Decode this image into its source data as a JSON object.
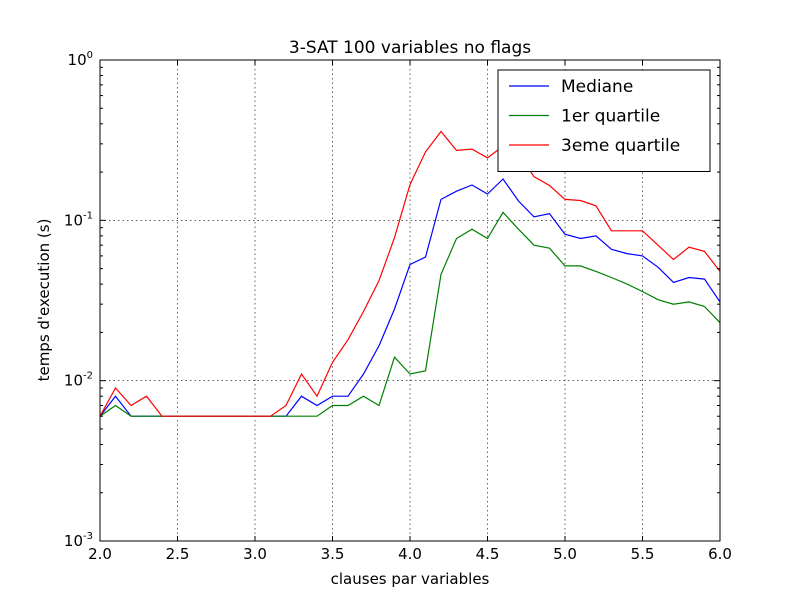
{
  "chart_data": {
    "type": "line",
    "title": "3-SAT 100 variables no flags",
    "xlabel": "clauses par variables",
    "ylabel": "temps d'execution (s)",
    "xlim": [
      2.0,
      6.0
    ],
    "ylim": [
      0.001,
      1.0
    ],
    "yscale": "log",
    "grid": true,
    "legend_position": "top-right",
    "x_ticks": [
      2.0,
      2.5,
      3.0,
      3.5,
      4.0,
      4.5,
      5.0,
      5.5,
      6.0
    ],
    "x_tick_labels": [
      "2.0",
      "2.5",
      "3.0",
      "3.5",
      "4.0",
      "4.5",
      "5.0",
      "5.5",
      "6.0"
    ],
    "y_ticks": [
      {
        "value": 0.001,
        "base": "10",
        "exp": "-3"
      },
      {
        "value": 0.01,
        "base": "10",
        "exp": "-2"
      },
      {
        "value": 0.1,
        "base": "10",
        "exp": "-1"
      },
      {
        "value": 1.0,
        "base": "10",
        "exp": "0"
      }
    ],
    "x": [
      2.0,
      2.1,
      2.2,
      2.3,
      2.4,
      2.5,
      2.6,
      2.7,
      2.8,
      2.9,
      3.0,
      3.1,
      3.2,
      3.3,
      3.4,
      3.5,
      3.6,
      3.7,
      3.8,
      3.9,
      4.0,
      4.1,
      4.2,
      4.3,
      4.4,
      4.5,
      4.6,
      4.7,
      4.8,
      4.9,
      5.0,
      5.1,
      5.2,
      5.3,
      5.4,
      5.5,
      5.6,
      5.7,
      5.8,
      5.9,
      6.0
    ],
    "series": [
      {
        "name": "Mediane",
        "color": "#0000ff",
        "values": [
          0.006,
          0.008,
          0.006,
          0.006,
          0.006,
          0.006,
          0.006,
          0.006,
          0.006,
          0.006,
          0.006,
          0.006,
          0.006,
          0.008,
          0.007,
          0.008,
          0.008,
          0.011,
          0.0165,
          0.028,
          0.053,
          0.059,
          0.135,
          0.152,
          0.166,
          0.146,
          0.181,
          0.132,
          0.105,
          0.11,
          0.082,
          0.077,
          0.08,
          0.066,
          0.062,
          0.06,
          0.051,
          0.041,
          0.044,
          0.043,
          0.031
        ]
      },
      {
        "name": "1er quartile",
        "color": "#008000",
        "values": [
          0.006,
          0.007,
          0.006,
          0.006,
          0.006,
          0.006,
          0.006,
          0.006,
          0.006,
          0.006,
          0.006,
          0.006,
          0.006,
          0.006,
          0.006,
          0.007,
          0.007,
          0.008,
          0.007,
          0.014,
          0.011,
          0.0115,
          0.046,
          0.077,
          0.088,
          0.077,
          0.112,
          0.088,
          0.07,
          0.067,
          0.052,
          0.052,
          0.048,
          0.044,
          0.04,
          0.036,
          0.032,
          0.03,
          0.031,
          0.029,
          0.023
        ]
      },
      {
        "name": "3eme quartile",
        "color": "#ff0000",
        "values": [
          0.006,
          0.009,
          0.007,
          0.008,
          0.006,
          0.006,
          0.006,
          0.006,
          0.006,
          0.006,
          0.006,
          0.006,
          0.007,
          0.011,
          0.008,
          0.013,
          0.018,
          0.027,
          0.042,
          0.078,
          0.167,
          0.267,
          0.358,
          0.273,
          0.278,
          0.245,
          0.29,
          0.26,
          0.187,
          0.165,
          0.135,
          0.133,
          0.123,
          0.086,
          0.086,
          0.086,
          0.07,
          0.057,
          0.068,
          0.064,
          0.048
        ]
      }
    ]
  }
}
